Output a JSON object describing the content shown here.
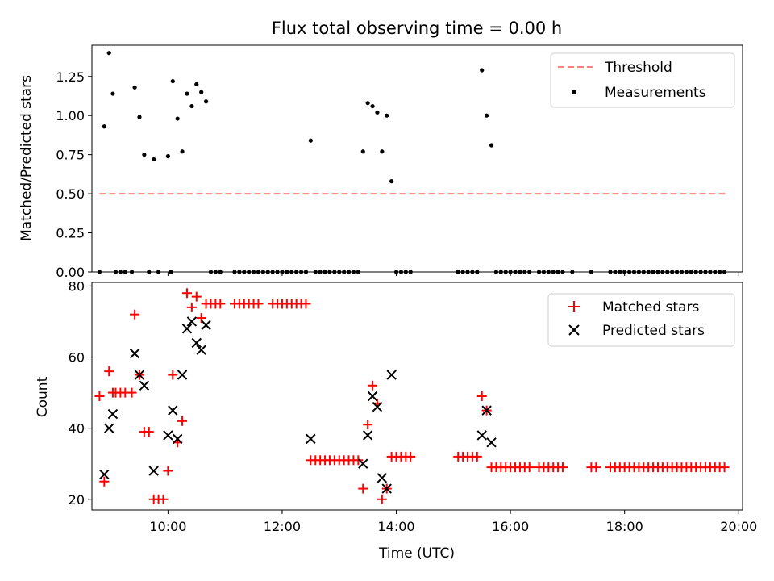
{
  "title": "Flux total observing time = 0.00 h",
  "colors": {
    "threshold": "#ff7f7f",
    "measurement": "#000000",
    "matched": "#ff0000",
    "predicted": "#000000"
  },
  "chart_data": [
    {
      "type": "scatter",
      "ylabel": "Matched/Predicted stars",
      "xlim": [
        "08:40",
        "20:04"
      ],
      "ylim": [
        0,
        1.45
      ],
      "yticks": [
        0.0,
        0.25,
        0.5,
        0.75,
        1.0,
        1.25
      ],
      "ytick_labels": [
        "0.00",
        "0.25",
        "0.50",
        "0.75",
        "1.00",
        "1.25"
      ],
      "legend_position": "top-right",
      "threshold": {
        "name": "Threshold",
        "y": 0.5,
        "x_range": [
          "08:48",
          "19:46"
        ]
      },
      "series": [
        {
          "name": "Measurements",
          "points": [
            [
              "08:48",
              0
            ],
            [
              "08:53",
              0.93
            ],
            [
              "08:58",
              1.4
            ],
            [
              "09:02",
              1.14
            ],
            [
              "09:05",
              0
            ],
            [
              "09:10",
              0
            ],
            [
              "09:15",
              0
            ],
            [
              "09:22",
              0
            ],
            [
              "09:25",
              1.18
            ],
            [
              "09:30",
              0.99
            ],
            [
              "09:35",
              0.75
            ],
            [
              "09:40",
              0
            ],
            [
              "09:45",
              0.72
            ],
            [
              "09:50",
              0
            ],
            [
              "10:00",
              0.74
            ],
            [
              "10:03",
              0
            ],
            [
              "10:05",
              1.22
            ],
            [
              "10:10",
              0.98
            ],
            [
              "10:15",
              0.77
            ],
            [
              "10:20",
              1.14
            ],
            [
              "10:25",
              1.06
            ],
            [
              "10:30",
              1.2
            ],
            [
              "10:35",
              1.15
            ],
            [
              "10:40",
              1.09
            ],
            [
              "10:45",
              0
            ],
            [
              "10:50",
              0
            ],
            [
              "10:55",
              0
            ],
            [
              "11:10",
              0
            ],
            [
              "11:15",
              0
            ],
            [
              "11:20",
              0
            ],
            [
              "11:25",
              0
            ],
            [
              "11:30",
              0
            ],
            [
              "11:35",
              0
            ],
            [
              "11:40",
              0
            ],
            [
              "11:45",
              0
            ],
            [
              "11:50",
              0
            ],
            [
              "11:55",
              0
            ],
            [
              "12:00",
              0
            ],
            [
              "12:05",
              0
            ],
            [
              "12:10",
              0
            ],
            [
              "12:15",
              0
            ],
            [
              "12:20",
              0
            ],
            [
              "12:25",
              0
            ],
            [
              "12:30",
              0.84
            ],
            [
              "12:35",
              0
            ],
            [
              "12:40",
              0
            ],
            [
              "12:45",
              0
            ],
            [
              "12:50",
              0
            ],
            [
              "12:55",
              0
            ],
            [
              "13:00",
              0
            ],
            [
              "13:05",
              0
            ],
            [
              "13:10",
              0
            ],
            [
              "13:15",
              0
            ],
            [
              "13:20",
              0
            ],
            [
              "13:25",
              0.77
            ],
            [
              "13:30",
              1.08
            ],
            [
              "13:35",
              1.06
            ],
            [
              "13:40",
              1.02
            ],
            [
              "13:45",
              0.77
            ],
            [
              "13:50",
              1.0
            ],
            [
              "13:55",
              0.58
            ],
            [
              "14:00",
              0
            ],
            [
              "14:05",
              0
            ],
            [
              "14:10",
              0
            ],
            [
              "14:15",
              0
            ],
            [
              "15:05",
              0
            ],
            [
              "15:10",
              0
            ],
            [
              "15:15",
              0
            ],
            [
              "15:20",
              0
            ],
            [
              "15:25",
              0
            ],
            [
              "15:30",
              1.29
            ],
            [
              "15:35",
              1.0
            ],
            [
              "15:40",
              0.81
            ],
            [
              "15:45",
              0
            ],
            [
              "15:50",
              0
            ],
            [
              "15:55",
              0
            ],
            [
              "16:00",
              0
            ],
            [
              "16:05",
              0
            ],
            [
              "16:10",
              0
            ],
            [
              "16:15",
              0
            ],
            [
              "16:20",
              0
            ],
            [
              "16:30",
              0
            ],
            [
              "16:35",
              0
            ],
            [
              "16:40",
              0
            ],
            [
              "16:45",
              0
            ],
            [
              "16:50",
              0
            ],
            [
              "16:55",
              0
            ],
            [
              "17:05",
              0
            ],
            [
              "17:25",
              0
            ],
            [
              "17:45",
              0
            ],
            [
              "17:50",
              0
            ],
            [
              "17:55",
              0
            ],
            [
              "18:00",
              0
            ],
            [
              "18:05",
              0
            ],
            [
              "18:10",
              0
            ],
            [
              "18:15",
              0
            ],
            [
              "18:20",
              0
            ],
            [
              "18:25",
              0
            ],
            [
              "18:30",
              0
            ],
            [
              "18:35",
              0
            ],
            [
              "18:40",
              0
            ],
            [
              "18:45",
              0
            ],
            [
              "18:50",
              0
            ],
            [
              "18:55",
              0
            ],
            [
              "19:00",
              0
            ],
            [
              "19:05",
              0
            ],
            [
              "19:10",
              0
            ],
            [
              "19:15",
              0
            ],
            [
              "19:20",
              0
            ],
            [
              "19:25",
              0
            ],
            [
              "19:30",
              0
            ],
            [
              "19:35",
              0
            ],
            [
              "19:40",
              0
            ],
            [
              "19:45",
              0
            ]
          ]
        }
      ]
    },
    {
      "type": "scatter",
      "xlabel": "Time (UTC)",
      "ylabel": "Count",
      "xlim": [
        "08:40",
        "20:04"
      ],
      "ylim": [
        17,
        81
      ],
      "xticks": [
        "10:00",
        "12:00",
        "14:00",
        "16:00",
        "18:00",
        "20:00"
      ],
      "yticks": [
        20,
        40,
        60,
        80
      ],
      "ytick_labels": [
        "20",
        "40",
        "60",
        "80"
      ],
      "legend_position": "top-right",
      "series": [
        {
          "name": "Matched stars",
          "marker": "plus",
          "points": [
            [
              "08:48",
              49
            ],
            [
              "08:53",
              25
            ],
            [
              "08:58",
              56
            ],
            [
              "09:02",
              50
            ],
            [
              "09:05",
              50
            ],
            [
              "09:10",
              50
            ],
            [
              "09:15",
              50
            ],
            [
              "09:22",
              50
            ],
            [
              "09:25",
              72
            ],
            [
              "09:30",
              55
            ],
            [
              "09:35",
              39
            ],
            [
              "09:40",
              39
            ],
            [
              "09:45",
              20
            ],
            [
              "09:50",
              20
            ],
            [
              "09:55",
              20
            ],
            [
              "10:00",
              28
            ],
            [
              "10:05",
              55
            ],
            [
              "10:10",
              36
            ],
            [
              "10:15",
              42
            ],
            [
              "10:20",
              78
            ],
            [
              "10:25",
              74
            ],
            [
              "10:30",
              77
            ],
            [
              "10:35",
              71
            ],
            [
              "10:40",
              75
            ],
            [
              "10:45",
              75
            ],
            [
              "10:50",
              75
            ],
            [
              "10:55",
              75
            ],
            [
              "11:10",
              75
            ],
            [
              "11:15",
              75
            ],
            [
              "11:20",
              75
            ],
            [
              "11:25",
              75
            ],
            [
              "11:30",
              75
            ],
            [
              "11:35",
              75
            ],
            [
              "11:50",
              75
            ],
            [
              "11:55",
              75
            ],
            [
              "12:00",
              75
            ],
            [
              "12:05",
              75
            ],
            [
              "12:10",
              75
            ],
            [
              "12:15",
              75
            ],
            [
              "12:20",
              75
            ],
            [
              "12:25",
              75
            ],
            [
              "12:30",
              31
            ],
            [
              "12:35",
              31
            ],
            [
              "12:40",
              31
            ],
            [
              "12:45",
              31
            ],
            [
              "12:50",
              31
            ],
            [
              "12:55",
              31
            ],
            [
              "13:00",
              31
            ],
            [
              "13:05",
              31
            ],
            [
              "13:10",
              31
            ],
            [
              "13:15",
              31
            ],
            [
              "13:20",
              31
            ],
            [
              "13:25",
              23
            ],
            [
              "13:30",
              41
            ],
            [
              "13:35",
              52
            ],
            [
              "13:40",
              47
            ],
            [
              "13:45",
              20
            ],
            [
              "13:50",
              23
            ],
            [
              "13:55",
              32
            ],
            [
              "14:00",
              32
            ],
            [
              "14:05",
              32
            ],
            [
              "14:10",
              32
            ],
            [
              "14:15",
              32
            ],
            [
              "15:05",
              32
            ],
            [
              "15:10",
              32
            ],
            [
              "15:15",
              32
            ],
            [
              "15:20",
              32
            ],
            [
              "15:25",
              32
            ],
            [
              "15:30",
              49
            ],
            [
              "15:35",
              45
            ],
            [
              "15:40",
              29
            ],
            [
              "15:45",
              29
            ],
            [
              "15:50",
              29
            ],
            [
              "15:55",
              29
            ],
            [
              "16:00",
              29
            ],
            [
              "16:05",
              29
            ],
            [
              "16:10",
              29
            ],
            [
              "16:15",
              29
            ],
            [
              "16:20",
              29
            ],
            [
              "16:30",
              29
            ],
            [
              "16:35",
              29
            ],
            [
              "16:40",
              29
            ],
            [
              "16:45",
              29
            ],
            [
              "16:50",
              29
            ],
            [
              "16:55",
              29
            ],
            [
              "17:25",
              29
            ],
            [
              "17:30",
              29
            ],
            [
              "17:45",
              29
            ],
            [
              "17:50",
              29
            ],
            [
              "17:55",
              29
            ],
            [
              "18:00",
              29
            ],
            [
              "18:05",
              29
            ],
            [
              "18:10",
              29
            ],
            [
              "18:15",
              29
            ],
            [
              "18:20",
              29
            ],
            [
              "18:25",
              29
            ],
            [
              "18:30",
              29
            ],
            [
              "18:35",
              29
            ],
            [
              "18:40",
              29
            ],
            [
              "18:45",
              29
            ],
            [
              "18:50",
              29
            ],
            [
              "18:55",
              29
            ],
            [
              "19:00",
              29
            ],
            [
              "19:05",
              29
            ],
            [
              "19:10",
              29
            ],
            [
              "19:15",
              29
            ],
            [
              "19:20",
              29
            ],
            [
              "19:25",
              29
            ],
            [
              "19:30",
              29
            ],
            [
              "19:35",
              29
            ],
            [
              "19:40",
              29
            ],
            [
              "19:45",
              29
            ]
          ]
        },
        {
          "name": "Predicted stars",
          "marker": "x",
          "points": [
            [
              "08:53",
              27
            ],
            [
              "08:58",
              40
            ],
            [
              "09:02",
              44
            ],
            [
              "09:25",
              61
            ],
            [
              "09:30",
              55
            ],
            [
              "09:35",
              52
            ],
            [
              "09:45",
              28
            ],
            [
              "10:00",
              38
            ],
            [
              "10:05",
              45
            ],
            [
              "10:10",
              37
            ],
            [
              "10:15",
              55
            ],
            [
              "10:20",
              68
            ],
            [
              "10:25",
              70
            ],
            [
              "10:30",
              64
            ],
            [
              "10:35",
              62
            ],
            [
              "10:40",
              69
            ],
            [
              "12:30",
              37
            ],
            [
              "13:25",
              30
            ],
            [
              "13:30",
              38
            ],
            [
              "13:35",
              49
            ],
            [
              "13:40",
              46
            ],
            [
              "13:45",
              26
            ],
            [
              "13:50",
              23
            ],
            [
              "13:55",
              55
            ],
            [
              "15:30",
              38
            ],
            [
              "15:35",
              45
            ],
            [
              "15:40",
              36
            ]
          ]
        }
      ]
    }
  ]
}
